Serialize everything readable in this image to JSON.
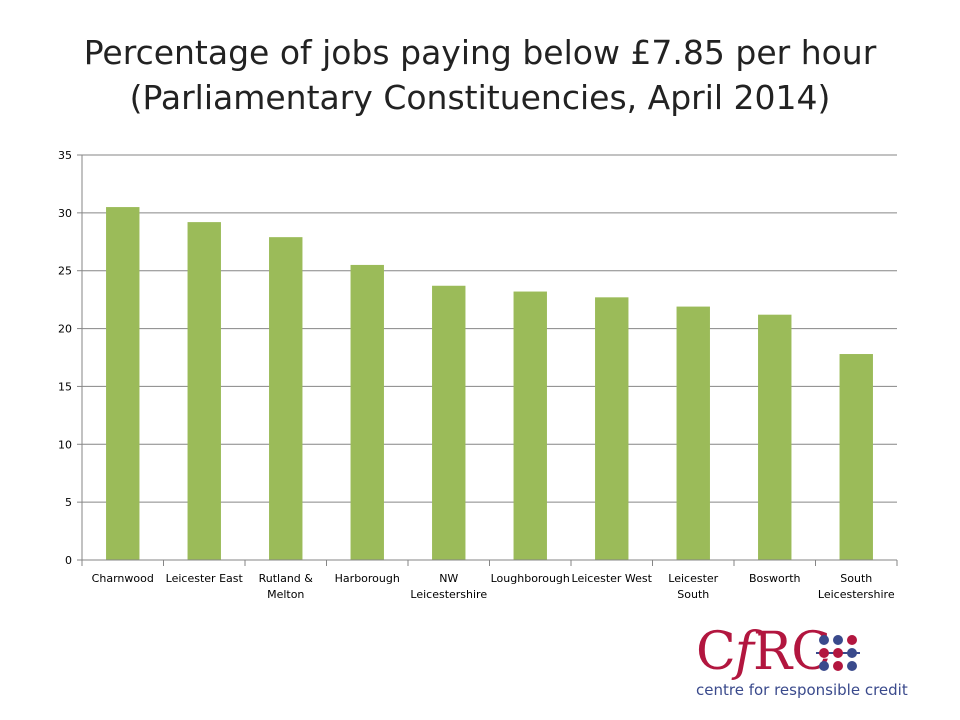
{
  "title_line1": "Percentage of jobs paying below £7.85 per hour",
  "title_line2": "(Parliamentary Constituencies, April 2014)",
  "colors": {
    "bar": "#9BBB59",
    "grid": "#868686",
    "axis_text": "#000000",
    "logo_red": "#b2163f",
    "logo_blue": "#3a4a8c"
  },
  "logo": {
    "mark_prefix": "C",
    "mark_italic": "f",
    "mark_suffix": "RC",
    "tagline": "centre for responsible credit"
  },
  "chart_data": {
    "type": "bar",
    "title": "",
    "xlabel": "",
    "ylabel": "",
    "ylim": [
      0,
      35
    ],
    "ytick_step": 5,
    "grid": true,
    "legend": "none",
    "categories": [
      "Charnwood",
      "Leicester East",
      "Rutland & Melton",
      "Harborough",
      "NW Leicestershire",
      "Loughborough",
      "Leicester West",
      "Leicester South",
      "Bosworth",
      "South Leicestershire"
    ],
    "category_label_lines": [
      [
        "Charnwood"
      ],
      [
        "Leicester East"
      ],
      [
        "Rutland &",
        "Melton"
      ],
      [
        "Harborough"
      ],
      [
        "NW",
        "Leicestershire"
      ],
      [
        "Loughborough"
      ],
      [
        "Leicester West"
      ],
      [
        "Leicester",
        "South"
      ],
      [
        "Bosworth"
      ],
      [
        "South",
        "Leicestershire"
      ]
    ],
    "values": [
      30.5,
      29.2,
      27.9,
      25.5,
      23.7,
      23.2,
      22.7,
      21.9,
      21.2,
      17.8
    ]
  }
}
